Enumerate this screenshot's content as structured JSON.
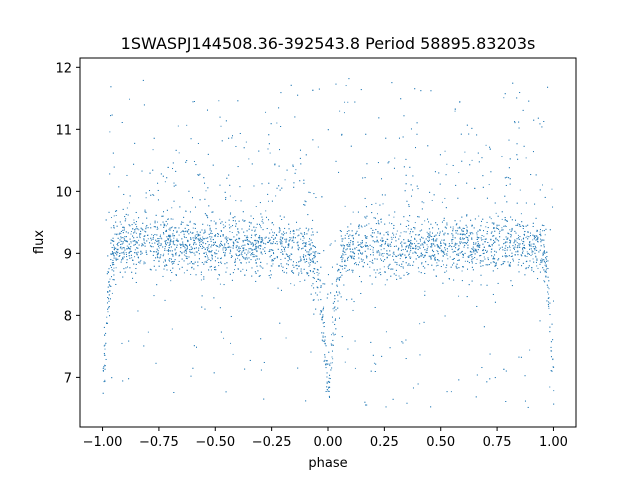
{
  "chart_data": {
    "type": "scatter",
    "title": "1SWASPJ144508.36-392543.8 Period 58895.83203s",
    "xlabel": "phase",
    "ylabel": "flux",
    "xlim": [
      -1.1,
      1.1
    ],
    "ylim": [
      6.2,
      12.15
    ],
    "xticks": [
      -1.0,
      -0.75,
      -0.5,
      -0.25,
      0.0,
      0.25,
      0.5,
      0.75,
      1.0
    ],
    "xtick_labels": [
      "−1.00",
      "−0.75",
      "−0.50",
      "−0.25",
      "0.00",
      "0.25",
      "0.50",
      "0.75",
      "1.00"
    ],
    "yticks": [
      7,
      8,
      9,
      10,
      11,
      12
    ],
    "ytick_labels": [
      "7",
      "8",
      "9",
      "10",
      "11",
      "12"
    ],
    "grid": false,
    "point_color": "#1f77b4",
    "light_curve": {
      "phase": [
        -1.0,
        -0.99,
        -0.98,
        -0.97,
        -0.96,
        -0.95,
        -0.93,
        -0.9,
        -0.8,
        -0.5,
        -0.2,
        -0.1,
        -0.06,
        -0.04,
        -0.02,
        -0.01,
        0.0,
        0.01,
        0.02,
        0.04,
        0.06,
        0.1,
        0.2,
        0.5,
        0.8,
        0.9,
        0.93,
        0.95,
        0.96,
        0.97,
        0.98,
        0.99,
        1.0
      ],
      "flux": [
        6.9,
        7.4,
        8.2,
        8.6,
        8.9,
        9.05,
        9.1,
        9.15,
        9.15,
        9.1,
        9.1,
        9.05,
        8.9,
        8.5,
        7.7,
        7.1,
        6.8,
        7.1,
        7.7,
        8.5,
        8.9,
        9.05,
        9.1,
        9.1,
        9.15,
        9.15,
        9.1,
        9.05,
        8.9,
        8.6,
        8.2,
        7.4,
        6.9
      ]
    }
  }
}
